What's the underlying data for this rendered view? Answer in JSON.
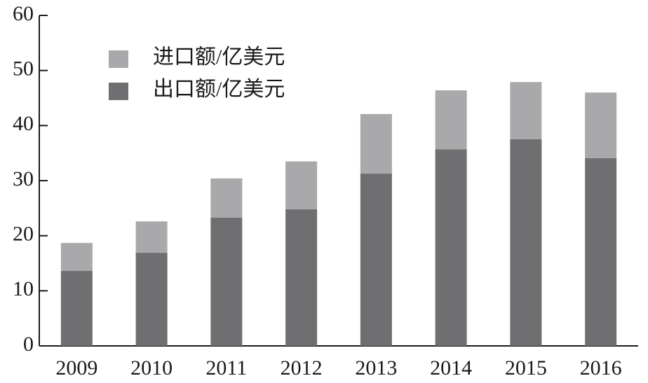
{
  "chart_data": {
    "type": "stacked-bar",
    "categories": [
      "2009",
      "2010",
      "2011",
      "2012",
      "2013",
      "2014",
      "2015",
      "2016"
    ],
    "series": [
      {
        "name": "出口额/亿美元",
        "color": "#6f6e70",
        "values": [
          13.6,
          16.9,
          23.3,
          24.8,
          31.3,
          35.7,
          37.5,
          34.1
        ]
      },
      {
        "name": "进口额/亿美元",
        "color": "#a9a8aa",
        "values": [
          5.1,
          5.7,
          7.1,
          8.7,
          10.8,
          10.7,
          10.4,
          11.9
        ]
      }
    ],
    "ylim": [
      0,
      60
    ],
    "yticks": [
      0,
      10,
      20,
      30,
      40,
      50,
      60
    ],
    "grid": false,
    "legend": "top-left"
  }
}
